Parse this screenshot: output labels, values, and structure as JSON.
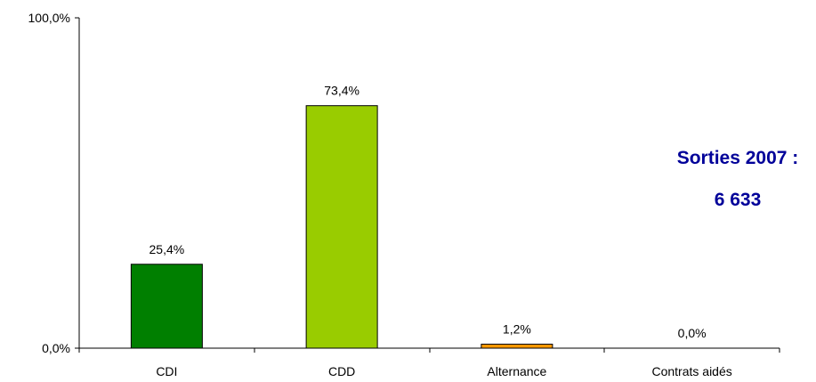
{
  "chart_data": {
    "type": "bar",
    "categories": [
      "CDI",
      "CDD",
      "Alternance",
      "Contrats aidés"
    ],
    "values": [
      25.4,
      73.4,
      1.2,
      0.0
    ],
    "data_labels": [
      "25,4%",
      "73,4%",
      "1,2%",
      "0,0%"
    ],
    "bar_colors": [
      "#007F00",
      "#99CC00",
      "#FF9900",
      "#FF9900"
    ],
    "ylim": [
      0,
      100
    ],
    "y_tick_labels": [
      "0,0%",
      "100,0%"
    ],
    "grid": false,
    "legend": "none",
    "annotation": {
      "line1": "Sorties 2007 :",
      "line2": "6 633",
      "color": "#000099"
    }
  }
}
